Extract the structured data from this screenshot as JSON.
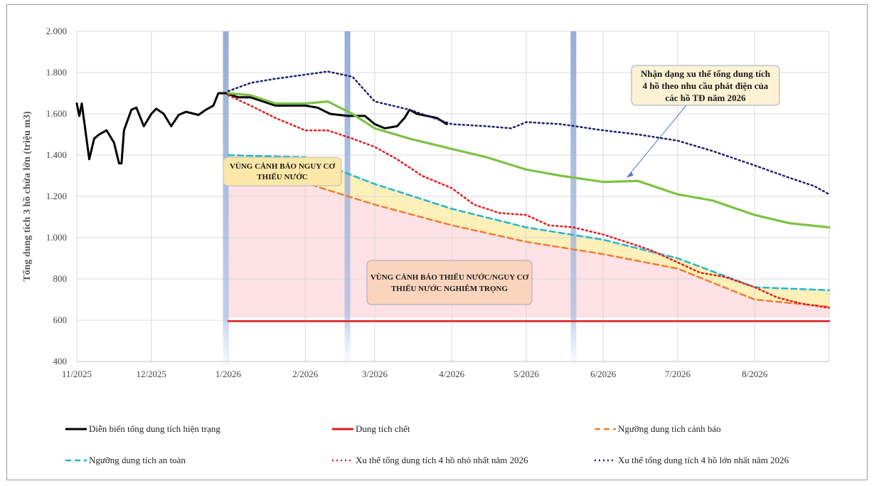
{
  "chart_data": {
    "type": "line",
    "title": "",
    "ylabel": "Tổng dung tích 3 hồ chứa lớn (triệu m3)",
    "xlabel": "",
    "ylim": [
      400,
      2000
    ],
    "yticks": [
      400,
      600,
      800,
      1000,
      1200,
      1400,
      1600,
      1800,
      2000
    ],
    "yticks_labels": [
      "400",
      "600",
      "800",
      "1.000",
      "1.200",
      "1.400",
      "1.600",
      "1.800",
      "2.000"
    ],
    "xrange": [
      "2025-11-01",
      "2026-08-31"
    ],
    "xticks": [
      {
        "date": "2025-11-01",
        "label": "11/2025"
      },
      {
        "date": "2025-12-01",
        "label": "12/2025"
      },
      {
        "date": "2026-01-01",
        "label": "1/2026"
      },
      {
        "date": "2026-02-01",
        "label": "2/2026"
      },
      {
        "date": "2026-03-01",
        "label": "3/2026"
      },
      {
        "date": "2026-04-01",
        "label": "4/2026"
      },
      {
        "date": "2026-05-01",
        "label": "5/2026"
      },
      {
        "date": "2026-06-01",
        "label": "6/2026"
      },
      {
        "date": "2026-07-01",
        "label": "7/2026"
      },
      {
        "date": "2026-08-01",
        "label": "8/2026"
      }
    ],
    "grid": true,
    "legend_position": "bottom",
    "vertical_markers": [
      "2025-12-31",
      "2026-02-18",
      "2026-05-20"
    ],
    "series": [
      {
        "name": "Diễn biến tổng dung tích hiện trạng",
        "color": "#000000",
        "style": "solid",
        "points": [
          [
            "2025-11-01",
            1650
          ],
          [
            "2025-11-02",
            1590
          ],
          [
            "2025-11-03",
            1650
          ],
          [
            "2025-11-05",
            1470
          ],
          [
            "2025-11-06",
            1380
          ],
          [
            "2025-11-08",
            1480
          ],
          [
            "2025-11-10",
            1500
          ],
          [
            "2025-11-13",
            1520
          ],
          [
            "2025-11-16",
            1460
          ],
          [
            "2025-11-18",
            1360
          ],
          [
            "2025-11-19",
            1360
          ],
          [
            "2025-11-20",
            1520
          ],
          [
            "2025-11-23",
            1620
          ],
          [
            "2025-11-25",
            1630
          ],
          [
            "2025-11-28",
            1540
          ],
          [
            "2025-12-01",
            1600
          ],
          [
            "2025-12-03",
            1625
          ],
          [
            "2025-12-06",
            1600
          ],
          [
            "2025-12-09",
            1540
          ],
          [
            "2025-12-12",
            1595
          ],
          [
            "2025-12-15",
            1610
          ],
          [
            "2025-12-20",
            1595
          ],
          [
            "2025-12-23",
            1620
          ],
          [
            "2025-12-26",
            1640
          ],
          [
            "2025-12-28",
            1700
          ],
          [
            "2025-12-31",
            1700
          ],
          [
            "2026-01-05",
            1680
          ],
          [
            "2026-01-10",
            1680
          ],
          [
            "2026-01-15",
            1660
          ],
          [
            "2026-01-20",
            1640
          ],
          [
            "2026-01-25",
            1640
          ],
          [
            "2026-02-01",
            1640
          ],
          [
            "2026-02-06",
            1630
          ],
          [
            "2026-02-11",
            1600
          ],
          [
            "2026-02-18",
            1590
          ],
          [
            "2026-02-25",
            1590
          ],
          [
            "2026-03-01",
            1550
          ],
          [
            "2026-03-05",
            1530
          ],
          [
            "2026-03-10",
            1540
          ],
          [
            "2026-03-13",
            1580
          ],
          [
            "2026-03-15",
            1620
          ],
          [
            "2026-03-18",
            1600
          ],
          [
            "2026-03-22",
            1590
          ],
          [
            "2026-03-26",
            1580
          ],
          [
            "2026-03-30",
            1550
          ]
        ]
      },
      {
        "name": "Dung tích chết",
        "color": "#e31a1c",
        "style": "solid",
        "points": [
          [
            "2026-01-01",
            595
          ],
          [
            "2026-08-31",
            595
          ]
        ]
      },
      {
        "name": "Ngưỡng dung tích cảnh báo",
        "color": "#ed7d31",
        "style": "dashed",
        "points": [
          [
            "2026-01-01",
            1270
          ],
          [
            "2026-02-01",
            1265
          ],
          [
            "2026-03-01",
            1160
          ],
          [
            "2026-04-01",
            1060
          ],
          [
            "2026-05-01",
            980
          ],
          [
            "2026-06-01",
            920
          ],
          [
            "2026-07-01",
            850
          ],
          [
            "2026-08-01",
            700
          ],
          [
            "2026-08-31",
            665
          ]
        ]
      },
      {
        "name": "Ngưỡng dung tích an toàn",
        "color": "#23b5d3",
        "style": "dashed",
        "points": [
          [
            "2026-01-01",
            1400
          ],
          [
            "2026-02-01",
            1390
          ],
          [
            "2026-03-01",
            1260
          ],
          [
            "2026-04-01",
            1140
          ],
          [
            "2026-05-01",
            1050
          ],
          [
            "2026-06-01",
            990
          ],
          [
            "2026-07-01",
            900
          ],
          [
            "2026-08-01",
            760
          ],
          [
            "2026-08-31",
            745
          ]
        ]
      },
      {
        "name": "Xu thế tổng dung tích 4 hồ nhỏ nhất năm 2026",
        "color": "#e31a1c",
        "style": "dotted",
        "points": [
          [
            "2026-01-01",
            1690
          ],
          [
            "2026-01-10",
            1640
          ],
          [
            "2026-01-20",
            1580
          ],
          [
            "2026-02-01",
            1520
          ],
          [
            "2026-02-10",
            1520
          ],
          [
            "2026-02-20",
            1480
          ],
          [
            "2026-03-01",
            1440
          ],
          [
            "2026-03-10",
            1380
          ],
          [
            "2026-03-20",
            1300
          ],
          [
            "2026-04-01",
            1240
          ],
          [
            "2026-04-10",
            1160
          ],
          [
            "2026-04-20",
            1120
          ],
          [
            "2026-05-01",
            1110
          ],
          [
            "2026-05-10",
            1060
          ],
          [
            "2026-05-20",
            1050
          ],
          [
            "2026-06-01",
            1015
          ],
          [
            "2026-06-10",
            980
          ],
          [
            "2026-06-20",
            940
          ],
          [
            "2026-07-01",
            880
          ],
          [
            "2026-07-10",
            830
          ],
          [
            "2026-07-20",
            810
          ],
          [
            "2026-08-01",
            760
          ],
          [
            "2026-08-10",
            710
          ],
          [
            "2026-08-20",
            680
          ],
          [
            "2026-08-31",
            660
          ]
        ]
      },
      {
        "name": "Xu thế tổng dung tích 4 hồ lớn nhất năm 2026",
        "color": "#1f1f6e",
        "style": "dotted",
        "points": [
          [
            "2026-01-01",
            1710
          ],
          [
            "2026-01-10",
            1750
          ],
          [
            "2026-01-20",
            1770
          ],
          [
            "2026-02-01",
            1790
          ],
          [
            "2026-02-10",
            1805
          ],
          [
            "2026-02-20",
            1780
          ],
          [
            "2026-03-01",
            1660
          ],
          [
            "2026-03-15",
            1620
          ],
          [
            "2026-04-01",
            1550
          ],
          [
            "2026-04-15",
            1540
          ],
          [
            "2026-04-25",
            1530
          ],
          [
            "2026-05-01",
            1560
          ],
          [
            "2026-05-15",
            1550
          ],
          [
            "2026-06-01",
            1520
          ],
          [
            "2026-06-15",
            1500
          ],
          [
            "2026-07-01",
            1470
          ],
          [
            "2026-07-15",
            1420
          ],
          [
            "2026-08-01",
            1350
          ],
          [
            "2026-08-15",
            1290
          ],
          [
            "2026-08-25",
            1250
          ],
          [
            "2026-08-31",
            1210
          ]
        ]
      },
      {
        "name": "",
        "color": "#7cc242",
        "style": "solid",
        "points": [
          [
            "2026-01-01",
            1700
          ],
          [
            "2026-01-10",
            1690
          ],
          [
            "2026-01-20",
            1650
          ],
          [
            "2026-02-01",
            1650
          ],
          [
            "2026-02-10",
            1660
          ],
          [
            "2026-02-20",
            1600
          ],
          [
            "2026-03-01",
            1530
          ],
          [
            "2026-03-15",
            1480
          ],
          [
            "2026-04-01",
            1430
          ],
          [
            "2026-04-15",
            1390
          ],
          [
            "2026-05-01",
            1330
          ],
          [
            "2026-05-15",
            1300
          ],
          [
            "2026-06-01",
            1270
          ],
          [
            "2026-06-15",
            1275
          ],
          [
            "2026-07-01",
            1210
          ],
          [
            "2026-07-15",
            1180
          ],
          [
            "2026-08-01",
            1110
          ],
          [
            "2026-08-15",
            1070
          ],
          [
            "2026-08-31",
            1050
          ]
        ]
      }
    ],
    "annotations": [
      {
        "id": "trend",
        "lines": [
          "Nhận dạng xu thế tổng dung tích",
          "4 hồ theo nhu cầu phát điện của",
          "các hồ TĐ năm 2026"
        ],
        "target": [
          "2026-06-10",
          1280
        ]
      },
      {
        "id": "zone-warning",
        "lines": [
          "VÙNG CẢNH BÁO NGUY CƠ",
          "THIẾU NƯỚC"
        ]
      },
      {
        "id": "zone-severe",
        "lines": [
          "VÙNG CẢNH BÁO THIẾU NƯỚC/NGUY CƠ",
          "THIẾU NƯỚC NGHIÊM TRỌNG"
        ]
      }
    ]
  },
  "legend": {
    "items": [
      {
        "label": "Diễn biến tổng dung tích hiện trạng",
        "color": "#000000",
        "style": "solid"
      },
      {
        "label": "Dung tích chết",
        "color": "#e31a1c",
        "style": "solid"
      },
      {
        "label": "Ngưỡng dung tích cảnh báo",
        "color": "#ed7d31",
        "style": "dashed"
      },
      {
        "label": "Ngưỡng dung tích an toàn",
        "color": "#23b5d3",
        "style": "dashed"
      },
      {
        "label": "Xu thế tổng dung tích 4 hồ nhỏ nhất năm 2026",
        "color": "#e31a1c",
        "style": "dotted"
      },
      {
        "label": "Xu thế tổng dung tích 4 hồ lớn nhất năm 2026",
        "color": "#1f1f6e",
        "style": "dotted"
      }
    ]
  }
}
